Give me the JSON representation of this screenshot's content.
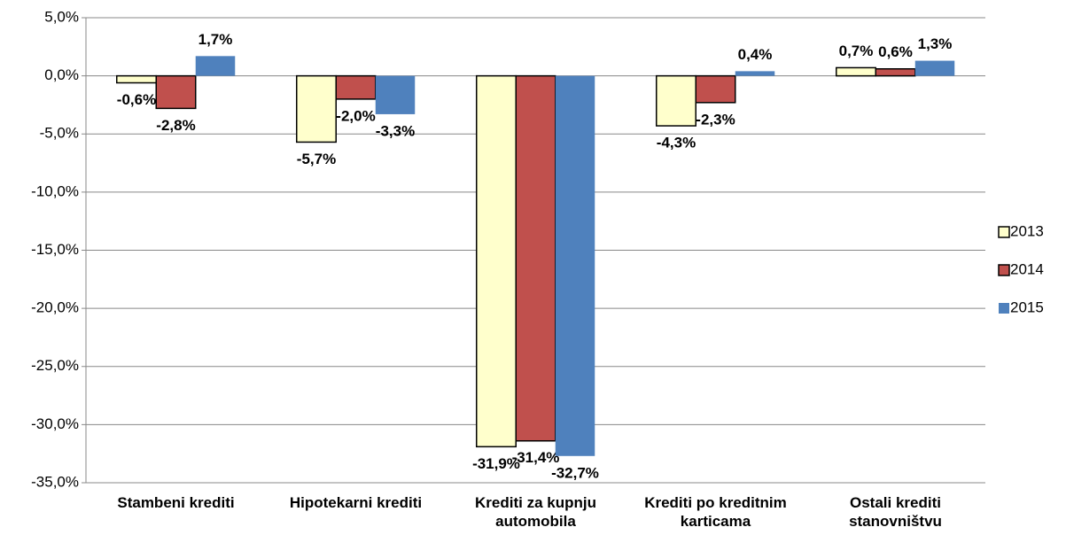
{
  "chart_data": {
    "type": "bar",
    "categories": [
      "Stambeni krediti",
      "Hipotekarni krediti",
      "Krediti za kupnju automobila",
      "Krediti po kreditnim karticama",
      "Ostali krediti stanovništvu"
    ],
    "series": [
      {
        "name": "2013",
        "color": "#ffffcc",
        "stroke": "#000000",
        "values": [
          -0.6,
          -5.7,
          -31.9,
          -4.3,
          0.7
        ],
        "value_labels": [
          "-0,6%",
          "-5,7%",
          "-31,9%",
          "-4,3%",
          "0,7%"
        ]
      },
      {
        "name": "2014",
        "color": "#c0504d",
        "stroke": "#000000",
        "values": [
          -2.8,
          -2.0,
          -31.4,
          -2.3,
          0.6
        ],
        "value_labels": [
          "-2,8%",
          "-2,0%",
          "-31,4%",
          "-2,3%",
          "0,6%"
        ]
      },
      {
        "name": "2015",
        "color": "#4f81bd",
        "values": [
          1.7,
          -3.3,
          -32.7,
          0.4,
          1.3
        ],
        "value_labels": [
          "1,7%",
          "-3,3%",
          "-32,7%",
          "0,4%",
          "1,3%"
        ]
      }
    ],
    "ylim": [
      -35,
      5
    ],
    "yticks": [
      {
        "value": 5,
        "label": "5,0%"
      },
      {
        "value": 0,
        "label": "0,0%"
      },
      {
        "value": -5,
        "label": "-5,0%"
      },
      {
        "value": -10,
        "label": "-10,0%"
      },
      {
        "value": -15,
        "label": "-15,0%"
      },
      {
        "value": -20,
        "label": "-20,0%"
      },
      {
        "value": -25,
        "label": "-25,0%"
      },
      {
        "value": -30,
        "label": "-30,0%"
      },
      {
        "value": -35,
        "label": "-35,0%"
      }
    ],
    "grid": true,
    "legend": "right"
  }
}
